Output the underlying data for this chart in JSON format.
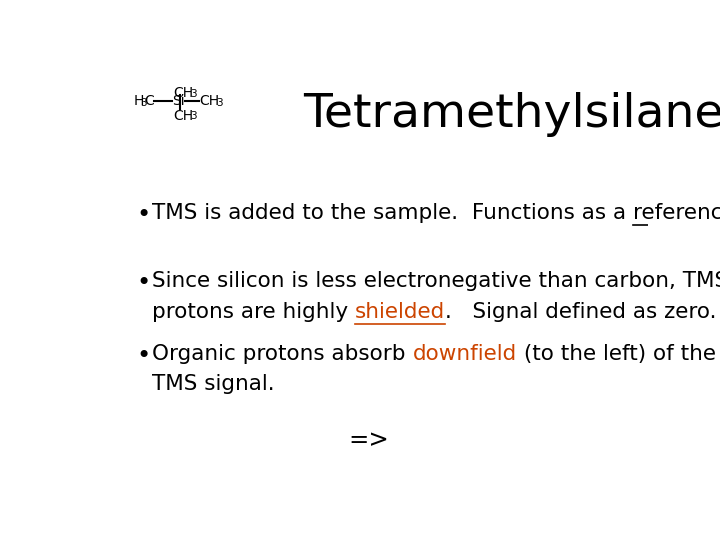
{
  "bg": "#ffffff",
  "title": "Tetramethylsilane",
  "title_fontsize": 34,
  "bullet_fontsize": 15.5,
  "bullet_color": "#000000",
  "highlight_color": "#cc4400",
  "font_family": "DejaVu Sans",
  "bullet1_pre": "TMS is added to the sample.  Functions as a ",
  "bullet1_ul": "reference",
  "bullet2_line1": "Since silicon is less electronegative than carbon, TMS",
  "bullet2_line2_pre": "protons are highly ",
  "bullet2_line2_hl": "shielded",
  "bullet2_line2_post": ".   Signal defined as zero.",
  "bullet3_line1_pre": "Organic protons absorb ",
  "bullet3_line1_hl": "downfield",
  "bullet3_line1_post": " (to the left) of the",
  "bullet3_line2": "TMS signal.",
  "arrow_text": "=>",
  "struct_fs_main": 10,
  "struct_fs_sub": 7.5
}
